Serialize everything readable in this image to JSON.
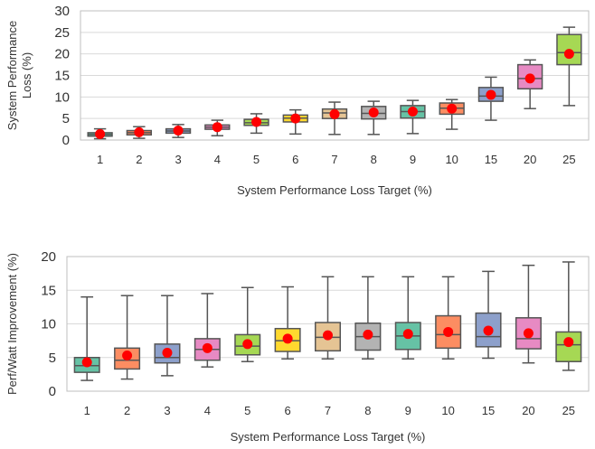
{
  "chart_data": [
    {
      "type": "box",
      "xlabel": "System Performance Loss Target (%)",
      "ylabel": "System Performance Loss (%)",
      "ylabel_lines": [
        "System Performance",
        "Loss (%)"
      ],
      "ylim": [
        0,
        30
      ],
      "yticks": [
        0,
        5,
        10,
        15,
        20,
        25,
        30
      ],
      "grid": "horizontal",
      "categories": [
        "1",
        "2",
        "3",
        "4",
        "5",
        "6",
        "7",
        "8",
        "9",
        "10",
        "15",
        "20",
        "25"
      ],
      "boxes": [
        {
          "whislo": 0.3,
          "q1": 0.9,
          "med": 1.3,
          "q3": 1.7,
          "whishi": 2.6,
          "mean": 1.4
        },
        {
          "whislo": 0.4,
          "q1": 1.2,
          "med": 1.7,
          "q3": 2.2,
          "whishi": 3.1,
          "mean": 1.8
        },
        {
          "whislo": 0.6,
          "q1": 1.6,
          "med": 2.1,
          "q3": 2.6,
          "whishi": 3.6,
          "mean": 2.2
        },
        {
          "whislo": 1.0,
          "q1": 2.5,
          "med": 3.0,
          "q3": 3.5,
          "whishi": 4.6,
          "mean": 3.0
        },
        {
          "whislo": 1.6,
          "q1": 3.4,
          "med": 4.0,
          "q3": 4.8,
          "whishi": 6.1,
          "mean": 4.2
        },
        {
          "whislo": 1.4,
          "q1": 4.2,
          "med": 5.1,
          "q3": 5.8,
          "whishi": 7.0,
          "mean": 5.0
        },
        {
          "whislo": 1.3,
          "q1": 5.0,
          "med": 6.3,
          "q3": 7.2,
          "whishi": 8.8,
          "mean": 6.0
        },
        {
          "whislo": 1.3,
          "q1": 4.9,
          "med": 6.2,
          "q3": 7.8,
          "whishi": 9.0,
          "mean": 6.4
        },
        {
          "whislo": 1.5,
          "q1": 5.1,
          "med": 6.6,
          "q3": 8.0,
          "whishi": 9.2,
          "mean": 6.6
        },
        {
          "whislo": 2.5,
          "q1": 6.0,
          "med": 7.4,
          "q3": 8.6,
          "whishi": 9.4,
          "mean": 7.3
        },
        {
          "whislo": 4.6,
          "q1": 9.0,
          "med": 10.2,
          "q3": 12.2,
          "whishi": 14.6,
          "mean": 10.5
        },
        {
          "whislo": 7.3,
          "q1": 11.9,
          "med": 14.3,
          "q3": 17.5,
          "whishi": 18.6,
          "mean": 14.3
        },
        {
          "whislo": 8.0,
          "q1": 17.5,
          "med": 20.3,
          "q3": 24.5,
          "whishi": 26.2,
          "mean": 20.0
        }
      ]
    },
    {
      "type": "box",
      "xlabel": "System Performance Loss Target (%)",
      "ylabel": "Perf/Watt Improvement (%)",
      "ylim": [
        0,
        20
      ],
      "yticks": [
        0,
        5,
        10,
        15,
        20
      ],
      "grid": "horizontal",
      "categories": [
        "1",
        "2",
        "3",
        "4",
        "5",
        "6",
        "7",
        "8",
        "9",
        "10",
        "15",
        "20",
        "25"
      ],
      "boxes": [
        {
          "whislo": 1.6,
          "q1": 2.8,
          "med": 3.8,
          "q3": 5.0,
          "whishi": 14.0,
          "mean": 4.3
        },
        {
          "whislo": 1.8,
          "q1": 3.3,
          "med": 4.6,
          "q3": 6.4,
          "whishi": 14.2,
          "mean": 5.3
        },
        {
          "whislo": 2.3,
          "q1": 4.2,
          "med": 5.0,
          "q3": 7.0,
          "whishi": 14.2,
          "mean": 5.7
        },
        {
          "whislo": 3.6,
          "q1": 4.6,
          "med": 6.2,
          "q3": 7.8,
          "whishi": 14.5,
          "mean": 6.4
        },
        {
          "whislo": 4.4,
          "q1": 5.4,
          "med": 6.7,
          "q3": 8.4,
          "whishi": 15.4,
          "mean": 7.0
        },
        {
          "whislo": 4.8,
          "q1": 5.9,
          "med": 7.5,
          "q3": 9.3,
          "whishi": 15.5,
          "mean": 7.8
        },
        {
          "whislo": 4.8,
          "q1": 6.0,
          "med": 8.0,
          "q3": 10.2,
          "whishi": 17.0,
          "mean": 8.3
        },
        {
          "whislo": 4.8,
          "q1": 6.1,
          "med": 8.1,
          "q3": 10.1,
          "whishi": 17.0,
          "mean": 8.4
        },
        {
          "whislo": 4.8,
          "q1": 6.2,
          "med": 8.2,
          "q3": 10.2,
          "whishi": 17.0,
          "mean": 8.5
        },
        {
          "whislo": 4.8,
          "q1": 6.4,
          "med": 8.4,
          "q3": 11.2,
          "whishi": 17.0,
          "mean": 8.8
        },
        {
          "whislo": 4.9,
          "q1": 6.6,
          "med": 8.1,
          "q3": 11.6,
          "whishi": 17.8,
          "mean": 9.0
        },
        {
          "whislo": 4.2,
          "q1": 6.3,
          "med": 7.8,
          "q3": 10.9,
          "whishi": 18.7,
          "mean": 8.6
        },
        {
          "whislo": 3.1,
          "q1": 4.4,
          "med": 6.9,
          "q3": 8.8,
          "whishi": 19.2,
          "mean": 7.3
        }
      ]
    }
  ],
  "palette": [
    "#66c2a5",
    "#fc8d62",
    "#8da0cb",
    "#e78ac3",
    "#a6d854",
    "#ffd92f",
    "#e5c494",
    "#b3b3b3",
    "#66c2a5",
    "#fc8d62",
    "#8da0cb",
    "#e78ac3",
    "#a6d854"
  ],
  "mean_color": "#ff0000",
  "box_edge_color": "#555555"
}
